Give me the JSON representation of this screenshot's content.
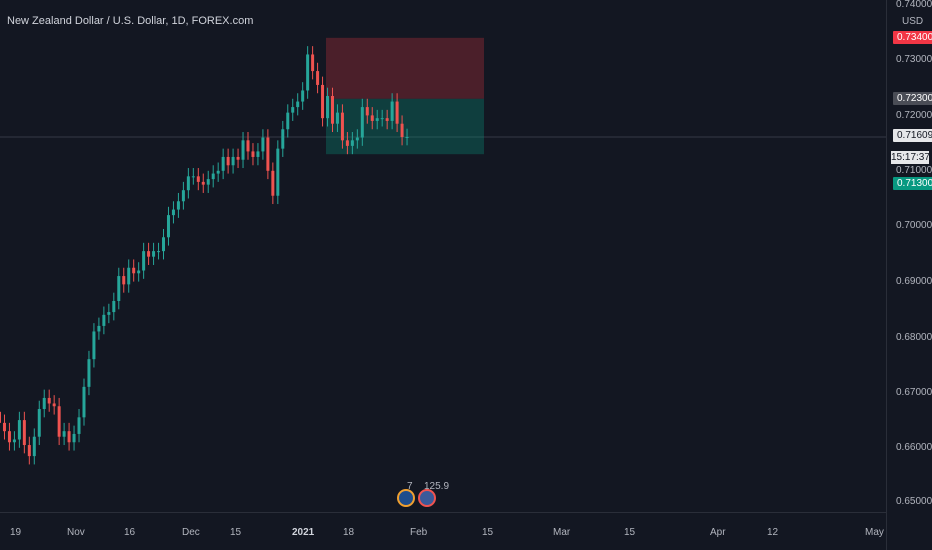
{
  "chart": {
    "title": "New Zealand Dollar / U.S. Dollar, 1D, FOREX.com",
    "currency": "USD",
    "y_ticks": [
      "0.74000",
      "0.73000",
      "0.72000",
      "0.71000",
      "0.70000",
      "0.69000",
      "0.68000",
      "0.67000",
      "0.66000",
      "0.65000"
    ],
    "x_ticks": [
      {
        "label": "19",
        "bold": false
      },
      {
        "label": "Nov",
        "bold": false
      },
      {
        "label": "16",
        "bold": false
      },
      {
        "label": "Dec",
        "bold": false
      },
      {
        "label": "15",
        "bold": false
      },
      {
        "label": "2021",
        "bold": true
      },
      {
        "label": "18",
        "bold": false
      },
      {
        "label": "Feb",
        "bold": false
      },
      {
        "label": "15",
        "bold": false
      },
      {
        "label": "Mar",
        "bold": false
      },
      {
        "label": "15",
        "bold": false
      },
      {
        "label": "Apr",
        "bold": false
      },
      {
        "label": "12",
        "bold": false
      },
      {
        "label": "May",
        "bold": false
      }
    ],
    "badges": {
      "target": {
        "label": "0.73400",
        "color": "#f23645"
      },
      "entry": {
        "label": "0.72300",
        "color": "#4a4d56"
      },
      "last": {
        "label": "0.71609",
        "color": "#e6e7ea",
        "text_color": "#131722"
      },
      "stop": {
        "label": "0.71300",
        "color": "#089981"
      }
    },
    "countdown": "15:17:37",
    "events_label_1": "7",
    "events_label_2": "125.9",
    "colors": {
      "up": "#26a69a",
      "down": "#ef5350",
      "bg": "#131722",
      "grid": "#2a2e39"
    }
  }
}
